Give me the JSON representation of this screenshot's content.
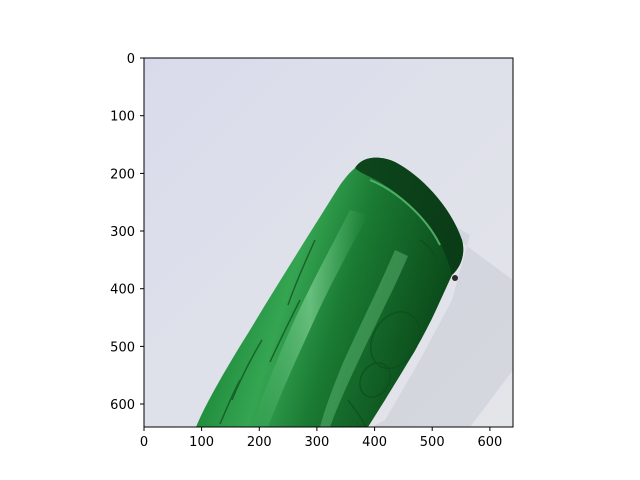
{
  "image": {
    "subject": "green glass bottle lying diagonally on a light gray background",
    "background_color": "#dcdfe9",
    "bottle_color": "#1f7f35"
  },
  "axes": {
    "x_ticks": [
      "0",
      "100",
      "200",
      "300",
      "400",
      "500",
      "600"
    ],
    "y_ticks": [
      "0",
      "100",
      "200",
      "300",
      "400",
      "500",
      "600"
    ],
    "xlim": [
      0,
      640
    ],
    "ylim": [
      640,
      0
    ]
  }
}
